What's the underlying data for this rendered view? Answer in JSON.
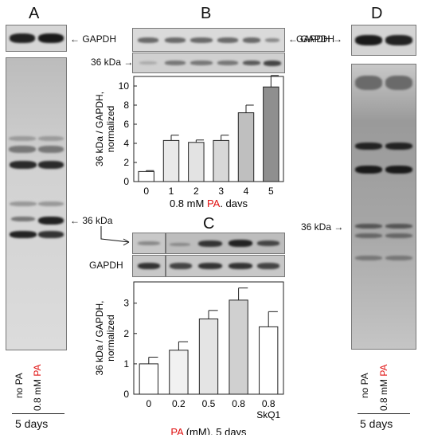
{
  "panels": {
    "A": "A",
    "B": "B",
    "C": "C",
    "D": "D"
  },
  "labels": {
    "gapdh": "GAPDH",
    "kda36": "36 kDa",
    "no_pa": "no PA",
    "mm08": "0.8 mM",
    "pa": "PA",
    "days5": "5 days"
  },
  "colors": {
    "accent_red": "#e01010"
  },
  "chart_data": [
    {
      "type": "bar",
      "ylabel": [
        "36 kDa / GAPDH,",
        "normalized"
      ],
      "xlabel": {
        "prefix": "0.8 mM ",
        "highlight": "PA",
        "suffix": ", days"
      },
      "categories": [
        "0",
        "1",
        "2",
        "3",
        "4",
        "5"
      ],
      "values": [
        1.05,
        4.3,
        4.1,
        4.3,
        7.2,
        9.9
      ],
      "errors": [
        0.1,
        0.55,
        0.25,
        0.55,
        0.8,
        1.2
      ],
      "fills": [
        "#ffffff",
        "#e9e9e9",
        "#e3e3e3",
        "#d8d8d8",
        "#bfbfbf",
        "#8f8f8f"
      ],
      "ylim": [
        0,
        11
      ],
      "yticks": [
        0,
        2,
        4,
        6,
        8,
        10
      ]
    },
    {
      "type": "bar",
      "ylabel": [
        "36 kDa / GAPDH,",
        "normalized"
      ],
      "xlabel": {
        "prefix": "",
        "highlight": "PA",
        "suffix": " (mM), 5 days"
      },
      "categories": [
        "0",
        "0.2",
        "0.5",
        "0.8",
        "0.8"
      ],
      "sublabels": [
        "",
        "",
        "",
        "",
        "SkQ1"
      ],
      "values": [
        1.0,
        1.45,
        2.48,
        3.1,
        2.22
      ],
      "errors": [
        0.22,
        0.28,
        0.28,
        0.4,
        0.5
      ],
      "fills": [
        "#ffffff",
        "#f1f1f1",
        "#e4e4e4",
        "#d0d0d0",
        "#ffffff"
      ],
      "ylim": [
        0,
        3.7
      ],
      "yticks": [
        0,
        1,
        2,
        3
      ]
    }
  ]
}
